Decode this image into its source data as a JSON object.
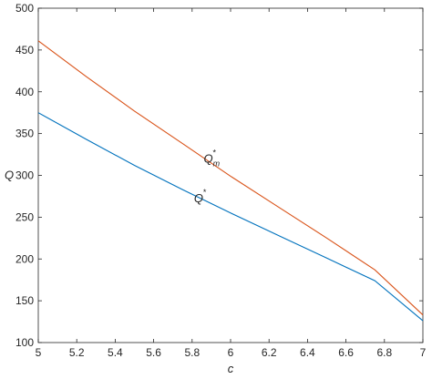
{
  "chart_data": {
    "type": "line",
    "title": "",
    "xlabel": "c",
    "ylabel": "Q",
    "xlim": [
      5,
      7
    ],
    "ylim": [
      100,
      500
    ],
    "xticks": [
      "5",
      "5.2",
      "5.4",
      "5.6",
      "5.8",
      "6",
      "6.2",
      "6.4",
      "6.6",
      "6.8",
      "7"
    ],
    "yticks": [
      "100",
      "150",
      "200",
      "250",
      "300",
      "350",
      "400",
      "450",
      "500"
    ],
    "grid": false,
    "series": [
      {
        "color": "#0072BD",
        "x": [
          5.0,
          5.25,
          5.5,
          5.75,
          6.0,
          6.25,
          6.5,
          6.75,
          7.0
        ],
        "y": [
          375,
          343,
          312,
          283,
          255,
          228,
          201,
          174,
          126
        ]
      },
      {
        "color": "#D95319",
        "x": [
          5.0,
          5.25,
          5.5,
          5.75,
          6.0,
          6.25,
          6.5,
          6.75,
          7.0
        ],
        "y": [
          461,
          418,
          377,
          338,
          299,
          262,
          225,
          187,
          133
        ]
      }
    ],
    "annotations": [
      {
        "text": "Q",
        "sub": "m",
        "sup": "*",
        "x": 5.86,
        "y": 315
      },
      {
        "text": "Q",
        "sub": "",
        "sup": "*",
        "x": 5.81,
        "y": 268
      }
    ]
  }
}
